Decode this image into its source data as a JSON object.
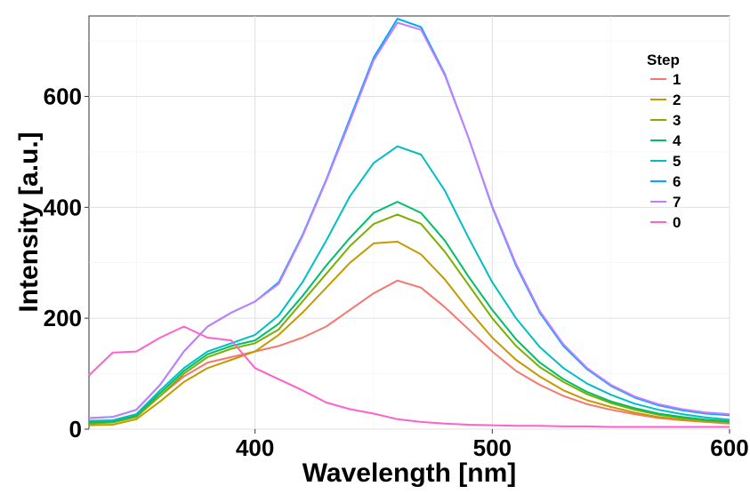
{
  "chart_data": {
    "type": "line",
    "xlabel": "Wavelength [nm]",
    "ylabel": "Intensity [a.u.]",
    "xlim": [
      330,
      600
    ],
    "ylim": [
      0,
      745
    ],
    "xticks": [
      400,
      500,
      600
    ],
    "yticks": [
      0,
      200,
      400,
      600
    ],
    "grid": true,
    "legend": {
      "title": "Step",
      "placement": "top-right"
    },
    "x": [
      330,
      340,
      350,
      360,
      370,
      380,
      390,
      400,
      410,
      420,
      430,
      440,
      450,
      460,
      470,
      480,
      490,
      500,
      510,
      520,
      530,
      540,
      550,
      560,
      570,
      580,
      590,
      600
    ],
    "series": [
      {
        "name": "1",
        "color": "#F8766D",
        "values": [
          15,
          15,
          25,
          60,
          95,
          120,
          130,
          140,
          150,
          165,
          185,
          215,
          245,
          268,
          255,
          220,
          180,
          140,
          105,
          80,
          60,
          45,
          35,
          27,
          20,
          16,
          13,
          10
        ]
      },
      {
        "name": "2",
        "color": "#C49A00",
        "values": [
          7,
          8,
          18,
          50,
          85,
          110,
          125,
          140,
          170,
          210,
          255,
          300,
          335,
          338,
          315,
          270,
          215,
          165,
          125,
          95,
          70,
          52,
          40,
          30,
          22,
          17,
          14,
          11
        ]
      },
      {
        "name": "3",
        "color": "#7CAE00",
        "values": [
          10,
          12,
          22,
          60,
          100,
          130,
          145,
          155,
          180,
          230,
          280,
          330,
          370,
          387,
          370,
          320,
          260,
          200,
          150,
          112,
          85,
          63,
          47,
          35,
          26,
          20,
          16,
          13
        ]
      },
      {
        "name": "4",
        "color": "#00BE67",
        "values": [
          12,
          14,
          25,
          65,
          105,
          135,
          150,
          160,
          190,
          240,
          295,
          345,
          390,
          410,
          390,
          340,
          275,
          215,
          162,
          120,
          90,
          67,
          50,
          38,
          28,
          22,
          17,
          14
        ]
      },
      {
        "name": "5",
        "color": "#00BFC4",
        "values": [
          15,
          16,
          27,
          70,
          110,
          140,
          155,
          170,
          205,
          265,
          340,
          420,
          480,
          510,
          495,
          430,
          345,
          265,
          200,
          148,
          110,
          82,
          62,
          46,
          35,
          27,
          21,
          17
        ]
      },
      {
        "name": "6",
        "color": "#00A9FF",
        "values": [
          20,
          22,
          35,
          80,
          140,
          185,
          210,
          230,
          265,
          350,
          450,
          560,
          670,
          740,
          725,
          640,
          525,
          400,
          295,
          210,
          150,
          108,
          78,
          57,
          43,
          34,
          28,
          25
        ]
      },
      {
        "name": "7",
        "color": "#C77CFF",
        "values": [
          20,
          22,
          35,
          80,
          140,
          185,
          210,
          230,
          262,
          348,
          448,
          555,
          665,
          733,
          720,
          638,
          525,
          402,
          298,
          213,
          153,
          110,
          80,
          59,
          45,
          36,
          30,
          27
        ]
      },
      {
        "name": "0",
        "color": "#FF61CC",
        "values": [
          97,
          138,
          140,
          165,
          185,
          165,
          160,
          110,
          90,
          70,
          48,
          36,
          28,
          18,
          13,
          10,
          8,
          7,
          6,
          6,
          5,
          5,
          4,
          4,
          4,
          4,
          4,
          4
        ]
      }
    ]
  }
}
